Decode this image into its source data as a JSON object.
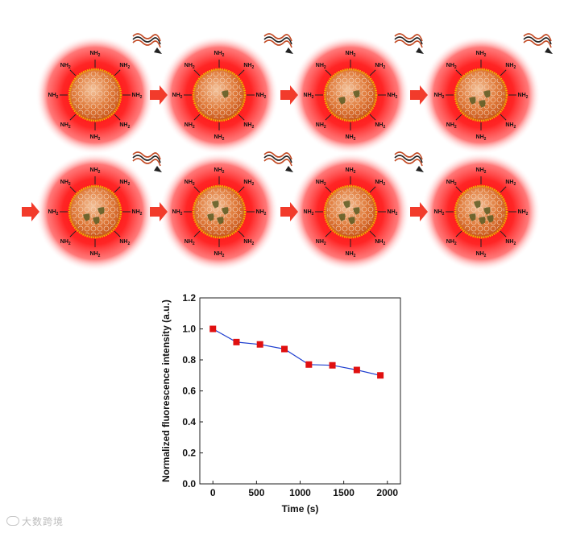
{
  "nanoparticle_label": "NH2",
  "nanoparticle_label_main": "NH",
  "nanoparticle_label_sub": "2",
  "watermark": "大数跨境",
  "colors": {
    "glow": "#ff1f1f",
    "core": "#d85a1a",
    "shell": "#f2b400",
    "arrow": "#f23b2b",
    "series_line": "#1f3fcf",
    "series_marker": "#e01010"
  },
  "chart_data": {
    "type": "line",
    "xlabel": "Time (s)",
    "ylabel": "Normalized fluorescence intensity (a.u.)",
    "xlim": [
      -150,
      2150
    ],
    "ylim": [
      0.0,
      1.2
    ],
    "xticks": [
      "0",
      "500",
      "1000",
      "1500",
      "2000"
    ],
    "yticks": [
      "0.0",
      "0.2",
      "0.4",
      "0.6",
      "0.8",
      "1.0",
      "1.2"
    ],
    "x": [
      0,
      270,
      540,
      820,
      1100,
      1370,
      1650,
      1920
    ],
    "y": [
      1.0,
      0.915,
      0.9,
      0.87,
      0.77,
      0.765,
      0.735,
      0.7
    ],
    "marker": "square",
    "grid": false
  }
}
